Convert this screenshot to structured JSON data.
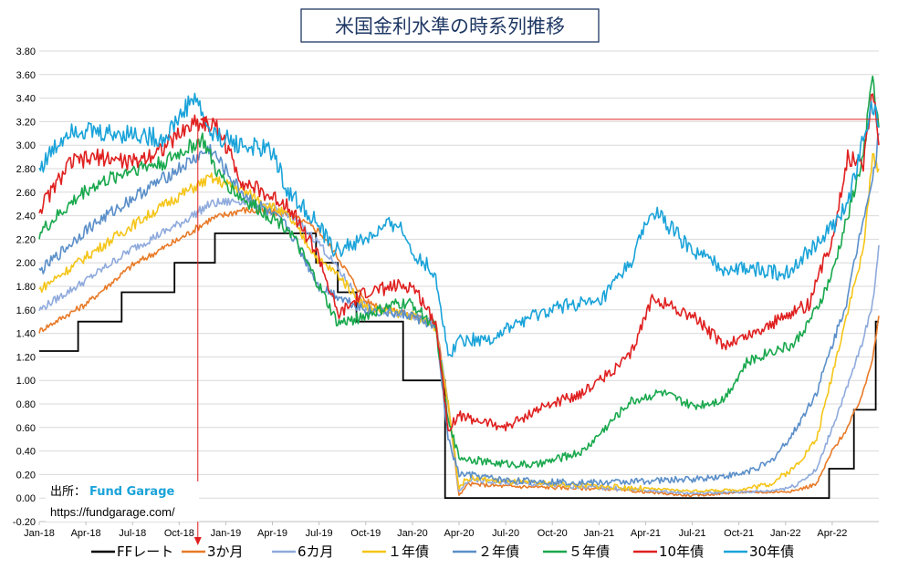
{
  "chart_data": {
    "type": "line",
    "title": "米国金利水準の時系列推移",
    "ylim": [
      -0.2,
      3.8
    ],
    "yticks": [
      "-0.20",
      "0.00",
      "0.20",
      "0.40",
      "0.60",
      "0.80",
      "1.00",
      "1.20",
      "1.40",
      "1.60",
      "1.80",
      "2.00",
      "2.20",
      "2.40",
      "2.60",
      "2.80",
      "3.00",
      "3.20",
      "3.40",
      "3.60",
      "3.80"
    ],
    "xlim": [
      0,
      54
    ],
    "xtick_labels": [
      "Jan-18",
      "Apr-18",
      "Jul-18",
      "Oct-18",
      "Jan-19",
      "Apr-19",
      "Jul-19",
      "Oct-19",
      "Jan-20",
      "Apr-20",
      "Jul-20",
      "Oct-20",
      "Jan-21",
      "Apr-21",
      "Jul-21",
      "Oct-21",
      "Jan-22",
      "Apr-22"
    ],
    "grid": true,
    "legend_position": "bottom",
    "reference": {
      "y": 3.22,
      "x": 10.2,
      "color": "#e02020"
    },
    "series": [
      {
        "name": "FFレート",
        "color": "#000000",
        "step": true,
        "x": [
          0,
          2.5,
          2.5,
          5.3,
          5.3,
          8.7,
          8.7,
          11.3,
          11.3,
          17.8,
          17.8,
          19.2,
          19.2,
          20.4,
          20.4,
          23.4,
          23.4,
          26.1,
          26.1,
          26.5,
          26.5,
          50.8,
          50.8,
          52.4,
          52.4,
          53.8,
          53.8,
          54
        ],
        "values": [
          1.25,
          1.25,
          1.5,
          1.5,
          1.75,
          1.75,
          2.0,
          2.0,
          2.25,
          2.25,
          2.0,
          2.0,
          1.75,
          1.75,
          1.5,
          1.5,
          1.0,
          1.0,
          0.0,
          0.0,
          0.0,
          0.0,
          0.25,
          0.25,
          0.75,
          0.75,
          1.5,
          1.5
        ]
      },
      {
        "name": "3か月",
        "color": "#e87a27",
        "x": [
          0,
          3,
          6,
          9,
          11,
          13,
          16,
          18,
          19.2,
          21,
          24,
          25.5,
          26.3,
          27,
          27.6,
          30,
          36,
          42,
          45,
          47,
          48.5,
          50,
          51,
          52,
          53,
          53.6,
          54
        ],
        "values": [
          1.42,
          1.65,
          1.98,
          2.2,
          2.37,
          2.45,
          2.42,
          2.27,
          2.05,
          1.67,
          1.55,
          1.5,
          0.8,
          0.02,
          0.12,
          0.1,
          0.08,
          0.02,
          0.05,
          0.05,
          0.06,
          0.12,
          0.4,
          0.6,
          0.9,
          1.2,
          1.55
        ]
      },
      {
        "name": "6カ月",
        "color": "#8faadc",
        "x": [
          0,
          3,
          6,
          9,
          11,
          13,
          16,
          18,
          19.2,
          21,
          24,
          25.5,
          26.3,
          27,
          27.6,
          30,
          36,
          42,
          45,
          47,
          48.5,
          50,
          51,
          52,
          53,
          53.6,
          54
        ],
        "values": [
          1.6,
          1.85,
          2.12,
          2.33,
          2.5,
          2.53,
          2.42,
          2.17,
          1.95,
          1.62,
          1.55,
          1.48,
          0.8,
          0.05,
          0.15,
          0.13,
          0.09,
          0.04,
          0.05,
          0.06,
          0.1,
          0.24,
          0.6,
          0.95,
          1.35,
          1.65,
          2.15
        ]
      },
      {
        "name": "１年債",
        "color": "#f5c518",
        "x": [
          0,
          3,
          6,
          9,
          11,
          13,
          16,
          18,
          19.2,
          21,
          24,
          25.5,
          26.3,
          27,
          27.6,
          30,
          36,
          42,
          45,
          47,
          48.5,
          50,
          51,
          52,
          53,
          53.6,
          54
        ],
        "values": [
          1.77,
          2.05,
          2.32,
          2.57,
          2.72,
          2.62,
          2.4,
          2.02,
          1.9,
          1.62,
          1.55,
          1.45,
          0.8,
          0.1,
          0.17,
          0.14,
          0.1,
          0.06,
          0.07,
          0.12,
          0.25,
          0.5,
          1.05,
          1.6,
          2.1,
          2.9,
          2.8
        ]
      },
      {
        "name": "２年債",
        "color": "#5b8fc9",
        "x": [
          0,
          3,
          6,
          9,
          11,
          13,
          16,
          18,
          19.2,
          21,
          24,
          25.5,
          26.3,
          27,
          27.6,
          30,
          36,
          42,
          45,
          47,
          48.5,
          50,
          51,
          52,
          53,
          53.6,
          54
        ],
        "values": [
          1.92,
          2.28,
          2.55,
          2.8,
          2.97,
          2.6,
          2.3,
          1.8,
          1.72,
          1.6,
          1.55,
          1.45,
          0.5,
          0.2,
          0.2,
          0.15,
          0.13,
          0.16,
          0.2,
          0.3,
          0.55,
          0.9,
          1.3,
          1.7,
          2.4,
          2.7,
          3.1
        ]
      },
      {
        "name": "５年債",
        "color": "#19a84d",
        "x": [
          0,
          3,
          6,
          8,
          10.5,
          11.5,
          13,
          16,
          18,
          19.2,
          21,
          23,
          24,
          25.5,
          26.3,
          27,
          29,
          32,
          35,
          38,
          40,
          42,
          44,
          45.5,
          47,
          48.5,
          50,
          51,
          52,
          53,
          53.6,
          54
        ],
        "values": [
          2.25,
          2.62,
          2.8,
          2.85,
          3.05,
          2.75,
          2.55,
          2.3,
          1.8,
          1.48,
          1.55,
          1.65,
          1.65,
          1.45,
          0.65,
          0.35,
          0.3,
          0.28,
          0.4,
          0.82,
          0.9,
          0.78,
          0.84,
          1.15,
          1.25,
          1.3,
          1.6,
          1.9,
          2.4,
          2.9,
          3.6,
          3.15
        ]
      },
      {
        "name": "10年債",
        "color": "#e02020",
        "x": [
          0,
          2,
          4,
          6,
          8,
          10,
          11.5,
          13,
          15,
          16,
          18,
          19.2,
          21,
          23,
          24,
          25.5,
          26.3,
          27,
          28.5,
          30,
          32,
          35,
          38,
          39.5,
          41,
          42,
          44,
          46,
          48,
          49.5,
          51,
          52,
          53,
          53.6,
          54
        ],
        "values": [
          2.45,
          2.85,
          2.9,
          2.85,
          2.98,
          3.2,
          3.15,
          2.7,
          2.55,
          2.5,
          2.05,
          1.55,
          1.75,
          1.8,
          1.8,
          1.5,
          0.6,
          0.7,
          0.65,
          0.6,
          0.75,
          0.9,
          1.2,
          1.72,
          1.6,
          1.55,
          1.3,
          1.4,
          1.55,
          1.65,
          2.2,
          2.9,
          2.85,
          3.48,
          3.0
        ]
      },
      {
        "name": "30年債",
        "color": "#1aa3d9",
        "x": [
          0,
          2,
          4,
          6,
          8,
          10,
          11,
          13,
          15,
          16,
          17.5,
          19,
          21,
          23,
          24,
          25.5,
          26.3,
          27,
          29,
          31,
          34,
          36,
          38,
          39.5,
          42,
          44,
          46,
          48,
          49.5,
          51,
          52,
          53,
          53.6,
          54
        ],
        "values": [
          2.8,
          3.15,
          3.1,
          3.1,
          3.05,
          3.42,
          3.1,
          3.0,
          2.95,
          2.6,
          2.4,
          2.1,
          2.2,
          2.35,
          2.1,
          1.9,
          1.2,
          1.35,
          1.35,
          1.5,
          1.65,
          1.65,
          2.0,
          2.45,
          2.1,
          1.95,
          1.95,
          1.9,
          2.1,
          2.3,
          2.5,
          3.05,
          3.35,
          3.15
        ]
      }
    ]
  },
  "source": {
    "label": "出所：",
    "brand": "Fund Garage",
    "url": "https://fundgarage.com/"
  }
}
